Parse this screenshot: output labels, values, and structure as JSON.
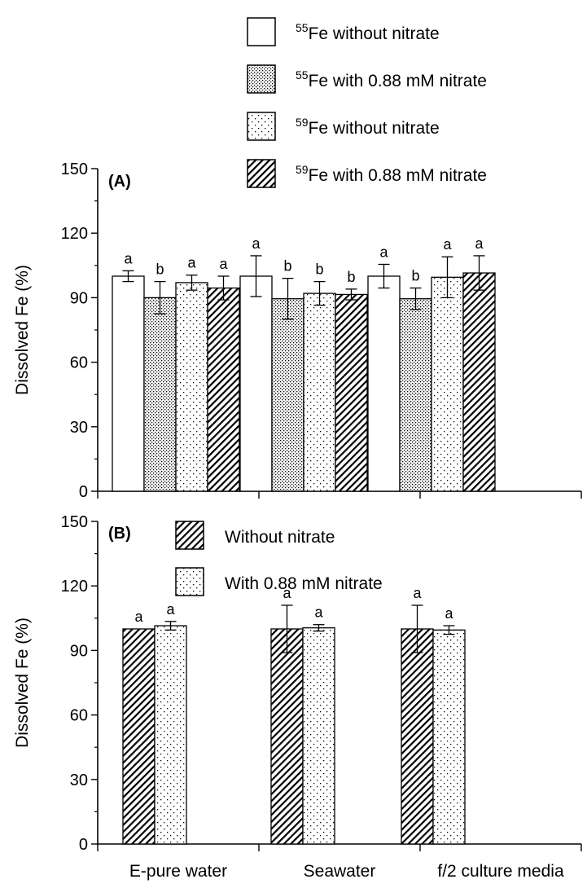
{
  "colors": {
    "axis": "#000000",
    "bar_edge": "#000000",
    "background": "#ffffff"
  },
  "chart_data": [
    {
      "type": "bar",
      "panel_label": "(A)",
      "ylabel": "Dissolved Fe (%)",
      "ylim": [
        0,
        150
      ],
      "yticks": [
        0,
        30,
        60,
        90,
        120,
        150
      ],
      "categories": [
        "E-pure water",
        "Seawater",
        "f/2 culture media"
      ],
      "legend_position": "top-right",
      "series": [
        {
          "name_sup": "55",
          "name": "Fe without nitrate",
          "pattern": "white",
          "values": [
            100,
            100,
            100
          ],
          "errors": [
            2.5,
            9.5,
            5.5
          ],
          "letters": [
            "a",
            "a",
            "a"
          ]
        },
        {
          "name_sup": "55",
          "name": "Fe with 0.88 mM nitrate",
          "pattern": "dense-dots",
          "values": [
            90,
            89.5,
            89.5
          ],
          "errors": [
            7.5,
            9.5,
            5
          ],
          "letters": [
            "b",
            "b",
            "b"
          ]
        },
        {
          "name_sup": "59",
          "name": "Fe without nitrate",
          "pattern": "sparse-dots",
          "values": [
            97,
            92,
            99.5
          ],
          "errors": [
            3.5,
            5.5,
            9.5
          ],
          "letters": [
            "a",
            "b",
            "a"
          ]
        },
        {
          "name_sup": "59",
          "name": "Fe with 0.88 mM nitrate",
          "pattern": "hatch",
          "values": [
            94.5,
            91.5,
            101.5
          ],
          "errors": [
            5.5,
            2.5,
            8
          ],
          "letters": [
            "a",
            "b",
            "a"
          ]
        }
      ]
    },
    {
      "type": "bar",
      "panel_label": "(B)",
      "ylabel": "Dissolved Fe (%)",
      "ylim": [
        0,
        150
      ],
      "yticks": [
        0,
        30,
        60,
        90,
        120,
        150
      ],
      "categories": [
        "E-pure water",
        "Seawater",
        "f/2 culture media"
      ],
      "legend_position": "top-left",
      "series": [
        {
          "name": "Without nitrate",
          "pattern": "hatch",
          "values": [
            100,
            100,
            100
          ],
          "errors": [
            0,
            11,
            11
          ],
          "letters": [
            "a",
            "a",
            "a"
          ]
        },
        {
          "name": "With 0.88 mM nitrate",
          "pattern": "sparse-dots",
          "values": [
            101.5,
            100.5,
            99.5
          ],
          "errors": [
            2,
            1.5,
            2
          ],
          "letters": [
            "a",
            "a",
            "a"
          ]
        }
      ]
    }
  ]
}
